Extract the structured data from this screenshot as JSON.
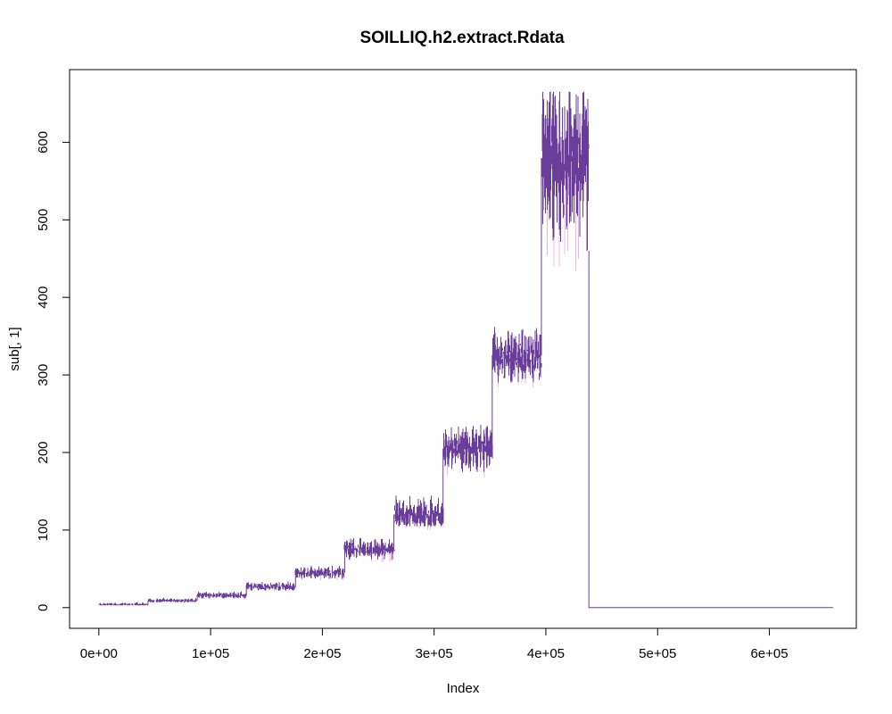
{
  "chart_data": {
    "type": "line",
    "title": "SOILLIQ.h2.extract.Rdata",
    "xlabel": "Index",
    "ylabel": "sub[, 1]",
    "xlim": [
      -26200,
      677800
    ],
    "ylim": [
      -26.7,
      693.7
    ],
    "grid": false,
    "legend": "none",
    "line_color": "#6a3d9a",
    "highlight_color": "#f0b8e8",
    "x_ticks": [
      {
        "value": 0,
        "label": "0e+00"
      },
      {
        "value": 100000,
        "label": "1e+05"
      },
      {
        "value": 200000,
        "label": "2e+05"
      },
      {
        "value": 300000,
        "label": "3e+05"
      },
      {
        "value": 400000,
        "label": "4e+05"
      },
      {
        "value": 500000,
        "label": "5e+05"
      },
      {
        "value": 600000,
        "label": "6e+05"
      }
    ],
    "y_ticks": [
      {
        "value": 0,
        "label": "0"
      },
      {
        "value": 100,
        "label": "100"
      },
      {
        "value": 200,
        "label": "200"
      },
      {
        "value": 300,
        "label": "300"
      },
      {
        "value": 400,
        "label": "400"
      },
      {
        "value": 500,
        "label": "500"
      },
      {
        "value": 600,
        "label": "600"
      }
    ],
    "segments": [
      {
        "x_start": 0,
        "x_end": 44000,
        "base": 4,
        "low": 3,
        "high": 7,
        "max": 8
      },
      {
        "x_start": 44000,
        "x_end": 88000,
        "base": 9,
        "low": 7,
        "high": 12,
        "max": 13
      },
      {
        "x_start": 88000,
        "x_end": 132000,
        "base": 16,
        "low": 12,
        "high": 20,
        "max": 21
      },
      {
        "x_start": 132000,
        "x_end": 176000,
        "base": 27,
        "low": 22,
        "high": 32,
        "max": 34
      },
      {
        "x_start": 176000,
        "x_end": 220000,
        "base": 45,
        "low": 37,
        "high": 52,
        "max": 54
      },
      {
        "x_start": 220000,
        "x_end": 264000,
        "base": 75,
        "low": 62,
        "high": 86,
        "max": 90
      },
      {
        "x_start": 264000,
        "x_end": 308000,
        "base": 120,
        "low": 105,
        "high": 143,
        "max": 148
      },
      {
        "x_start": 308000,
        "x_end": 352000,
        "base": 205,
        "low": 175,
        "high": 230,
        "max": 240
      },
      {
        "x_start": 352000,
        "x_end": 396000,
        "base": 325,
        "low": 290,
        "high": 355,
        "max": 362
      },
      {
        "x_start": 396000,
        "x_end": 438500,
        "base": 580,
        "low": 460,
        "high": 650,
        "max": 665
      }
    ],
    "tail": {
      "x_start": 438500,
      "x_end": 657000,
      "value": 0
    }
  }
}
